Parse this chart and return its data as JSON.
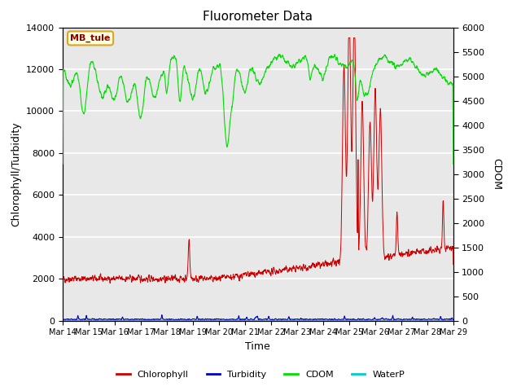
{
  "title": "Fluorometer Data",
  "xlabel": "Time",
  "ylabel_left": "Chlorophyll/Turbidity",
  "ylabel_right": "CDOM",
  "annotation_text": "MB_tule",
  "ylim_left": [
    0,
    14000
  ],
  "ylim_right": [
    0,
    6000
  ],
  "yticks_left": [
    0,
    2000,
    4000,
    6000,
    8000,
    10000,
    12000,
    14000
  ],
  "yticks_right": [
    0,
    500,
    1000,
    1500,
    2000,
    2500,
    3000,
    3500,
    4000,
    4500,
    5000,
    5500,
    6000
  ],
  "xtick_labels": [
    "Mar 14",
    "Mar 15",
    "Mar 16",
    "Mar 17",
    "Mar 18",
    "Mar 19",
    "Mar 20",
    "Mar 21",
    "Mar 22",
    "Mar 23",
    "Mar 24",
    "Mar 25",
    "Mar 26",
    "Mar 27",
    "Mar 28",
    "Mar 29"
  ],
  "chlorophyll_color": "#cc0000",
  "turbidity_color": "#0000cc",
  "cdom_color": "#00dd00",
  "waterp_color": "#00cccc",
  "background_color": "#e8e8e8",
  "seed": 42
}
